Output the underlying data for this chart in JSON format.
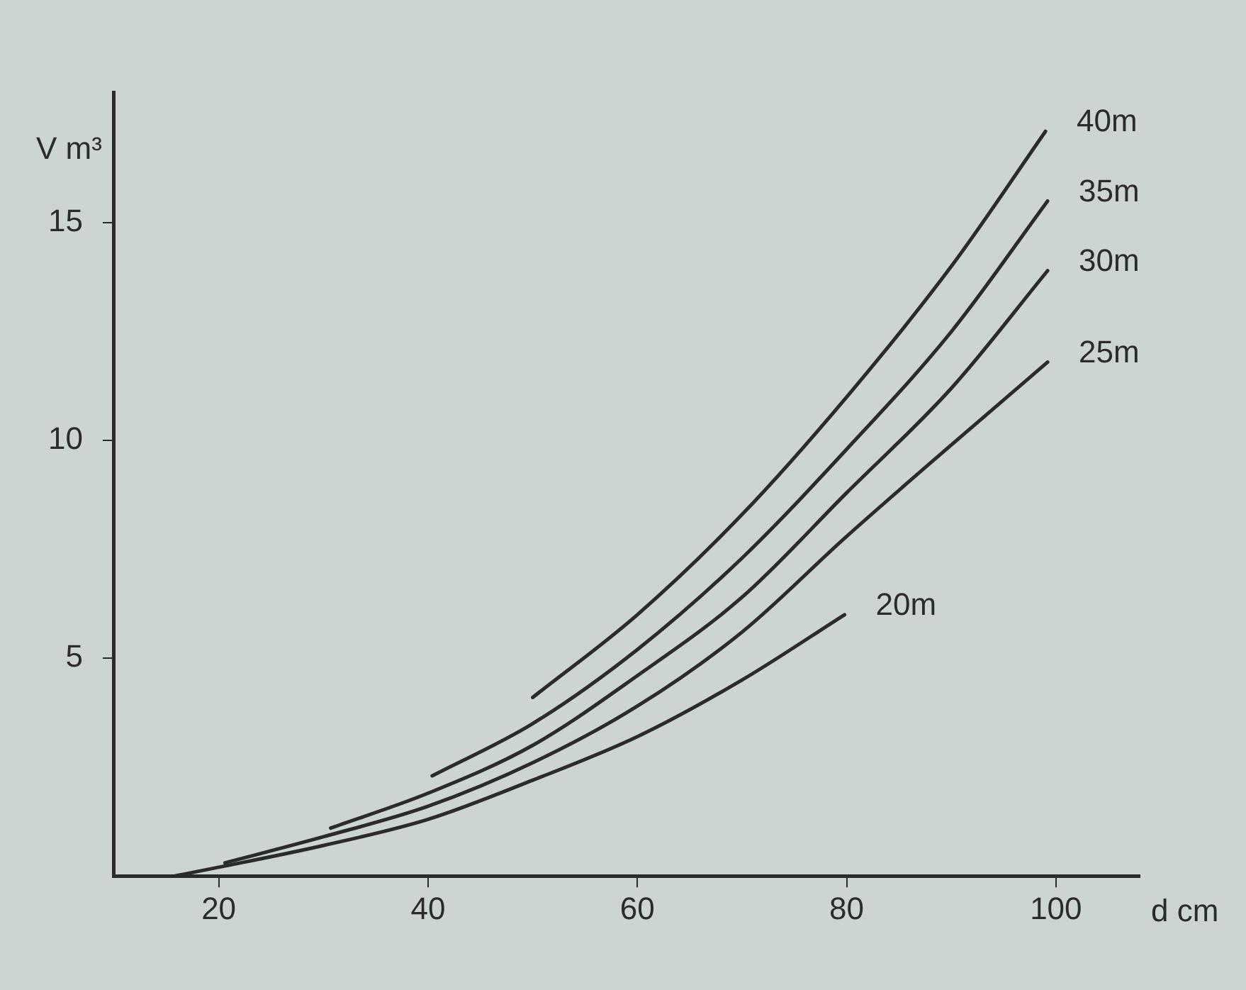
{
  "chart_data": {
    "type": "line",
    "xlabel": "d cm",
    "ylabel": "V m³",
    "xlim": [
      10,
      108
    ],
    "xticks": [
      20,
      40,
      60,
      80,
      100
    ],
    "ylim": [
      0,
      18
    ],
    "yticks": [
      5,
      10,
      15
    ],
    "grid": false,
    "legend": false,
    "marker": "none",
    "line_style": "solid",
    "series": [
      {
        "name": "40m",
        "color": "#2b2b2b",
        "x": [
          50,
          60,
          70,
          80,
          90,
          99
        ],
        "values": [
          4.1,
          6.0,
          8.3,
          11.0,
          14.0,
          17.1
        ]
      },
      {
        "name": "35m",
        "color": "#2b2b2b",
        "x": [
          40.4,
          50,
          60,
          70,
          80,
          90,
          99.2
        ],
        "values": [
          2.3,
          3.5,
          5.2,
          7.3,
          9.8,
          12.5,
          15.5
        ]
      },
      {
        "name": "30m",
        "color": "#2b2b2b",
        "x": [
          30.7,
          40,
          50,
          60,
          70,
          80,
          90,
          99.2
        ],
        "values": [
          1.1,
          1.9,
          3.0,
          4.6,
          6.4,
          8.8,
          11.2,
          13.9
        ]
      },
      {
        "name": "25m",
        "color": "#2b2b2b",
        "x": [
          20.6,
          30,
          40,
          50,
          60,
          70,
          80,
          90,
          99.2
        ],
        "values": [
          0.3,
          0.9,
          1.6,
          2.6,
          3.9,
          5.6,
          7.8,
          9.9,
          11.8
        ]
      },
      {
        "name": "20m",
        "color": "#2b2b2b",
        "x": [
          15.8,
          20,
          30,
          40,
          50,
          60,
          70,
          79.8
        ],
        "values": [
          0,
          0.2,
          0.7,
          1.3,
          2.2,
          3.2,
          4.5,
          6.0
        ]
      }
    ]
  }
}
